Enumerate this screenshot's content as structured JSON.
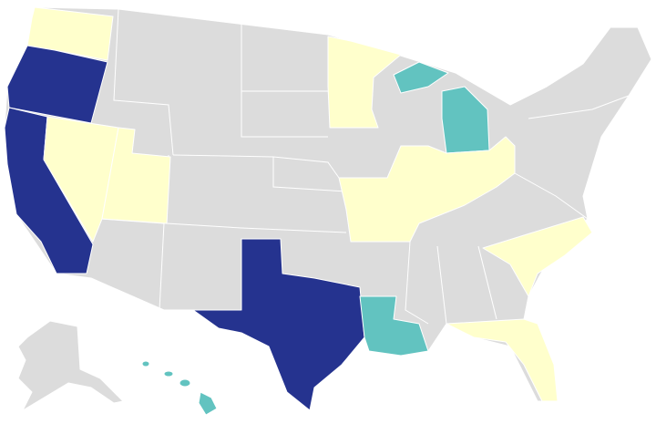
{
  "map": {
    "palette": [
      "#dcdcdc",
      "#ffffcc",
      "#62c3c0",
      "#25338f"
    ],
    "border_color": "#ffffff"
  }
}
